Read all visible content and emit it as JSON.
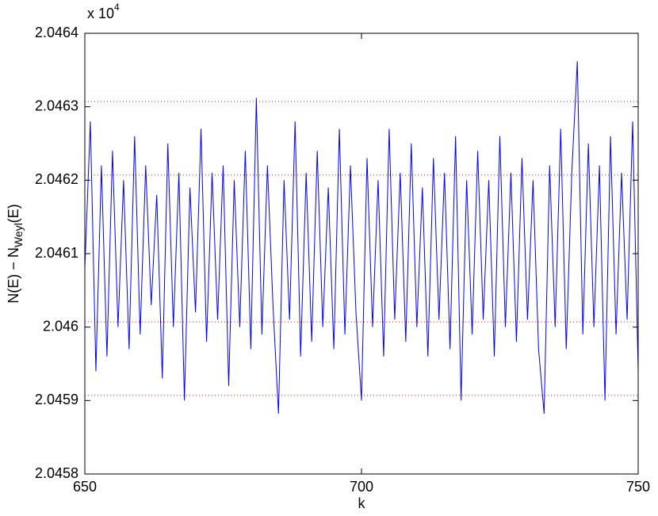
{
  "chart_data": {
    "type": "line",
    "y_multiplier": "x 10",
    "y_multiplier_exponent": "4",
    "xlabel": "k",
    "ylabel_parts": [
      "N(E) − N",
      "Weyl",
      "(E)"
    ],
    "x": [
      650,
      651,
      652,
      653,
      654,
      655,
      656,
      657,
      658,
      659,
      660,
      661,
      662,
      663,
      664,
      665,
      666,
      667,
      668,
      669,
      670,
      671,
      672,
      673,
      674,
      675,
      676,
      677,
      678,
      679,
      680,
      681,
      682,
      683,
      684,
      685,
      686,
      687,
      688,
      689,
      690,
      691,
      692,
      693,
      694,
      695,
      696,
      697,
      698,
      699,
      700,
      701,
      702,
      703,
      704,
      705,
      706,
      707,
      708,
      709,
      710,
      711,
      712,
      713,
      714,
      715,
      716,
      717,
      718,
      719,
      720,
      721,
      722,
      723,
      724,
      725,
      726,
      727,
      728,
      729,
      730,
      731,
      732,
      733,
      734,
      735,
      736,
      737,
      738,
      739,
      740,
      741,
      742,
      743,
      744,
      745,
      746,
      747,
      748,
      749,
      750
    ],
    "values": [
      2.04608,
      2.04628,
      2.04594,
      2.04622,
      2.04596,
      2.04624,
      2.046,
      2.0462,
      2.04597,
      2.04626,
      2.04599,
      2.04622,
      2.04603,
      2.04618,
      2.04593,
      2.04625,
      2.046,
      2.04621,
      2.0459,
      2.04619,
      2.04602,
      2.04627,
      2.04598,
      2.04621,
      2.04601,
      2.04622,
      2.04592,
      2.0462,
      2.046,
      2.04624,
      2.04597,
      2.046312,
      2.04599,
      2.04622,
      2.04603,
      2.045882,
      2.0462,
      2.04601,
      2.04628,
      2.04596,
      2.04621,
      2.04598,
      2.04624,
      2.046,
      2.04619,
      2.04597,
      2.04627,
      2.04599,
      2.04622,
      2.04602,
      2.0459,
      2.04623,
      2.046,
      2.0462,
      2.04596,
      2.04627,
      2.04601,
      2.04621,
      2.04598,
      2.04625,
      2.046,
      2.04619,
      2.04596,
      2.04623,
      2.04601,
      2.04621,
      2.04597,
      2.04626,
      2.0459,
      2.0462,
      2.04599,
      2.04624,
      2.04601,
      2.0462,
      2.04596,
      2.04626,
      2.046,
      2.04621,
      2.04598,
      2.04623,
      2.04601,
      2.0462,
      2.04597,
      2.045882,
      2.04622,
      2.046,
      2.04627,
      2.04597,
      2.04621,
      2.046362,
      2.04599,
      2.04625,
      2.046,
      2.04622,
      2.0459,
      2.04626,
      2.04599,
      2.04621,
      2.04601,
      2.04628,
      2.04594
    ],
    "color": "#0000ff",
    "reference_lines": [
      2.045907,
      2.046007,
      2.046207,
      2.046307
    ],
    "reference_color": "#ff0000",
    "xlim": [
      650,
      750
    ],
    "xticks": [
      650,
      700,
      750
    ],
    "ylim": [
      2.0458,
      2.0464
    ],
    "yticks": [
      2.0458,
      2.0459,
      2.046,
      2.0461,
      2.0462,
      2.0463,
      2.0464
    ]
  }
}
